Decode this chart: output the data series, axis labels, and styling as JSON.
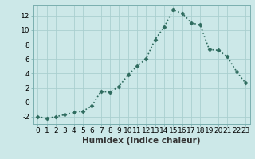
{
  "x": [
    0,
    1,
    2,
    3,
    4,
    5,
    6,
    7,
    8,
    9,
    10,
    11,
    12,
    13,
    14,
    15,
    16,
    17,
    18,
    19,
    20,
    21,
    22,
    23
  ],
  "y": [
    -2,
    -2.2,
    -2.0,
    -1.7,
    -1.4,
    -1.2,
    -0.5,
    1.5,
    1.4,
    2.2,
    3.8,
    5.0,
    6.0,
    8.7,
    10.4,
    12.8,
    12.3,
    11.0,
    10.7,
    7.3,
    7.2,
    6.3,
    4.3,
    2.7
  ],
  "line_color": "#2e6b5e",
  "marker": "D",
  "markersize": 2.5,
  "xlabel": "Humidex (Indice chaleur)",
  "xlim": [
    -0.5,
    23.5
  ],
  "ylim": [
    -3.0,
    13.5
  ],
  "yticks": [
    -2,
    0,
    2,
    4,
    6,
    8,
    10,
    12
  ],
  "xticks": [
    0,
    1,
    2,
    3,
    4,
    5,
    6,
    7,
    8,
    9,
    10,
    11,
    12,
    13,
    14,
    15,
    16,
    17,
    18,
    19,
    20,
    21,
    22,
    23
  ],
  "bg_color": "#cce8e8",
  "grid_color": "#aacfcf",
  "spine_color": "#7aafaf",
  "tick_fontsize": 6.5,
  "xlabel_fontsize": 7.5
}
